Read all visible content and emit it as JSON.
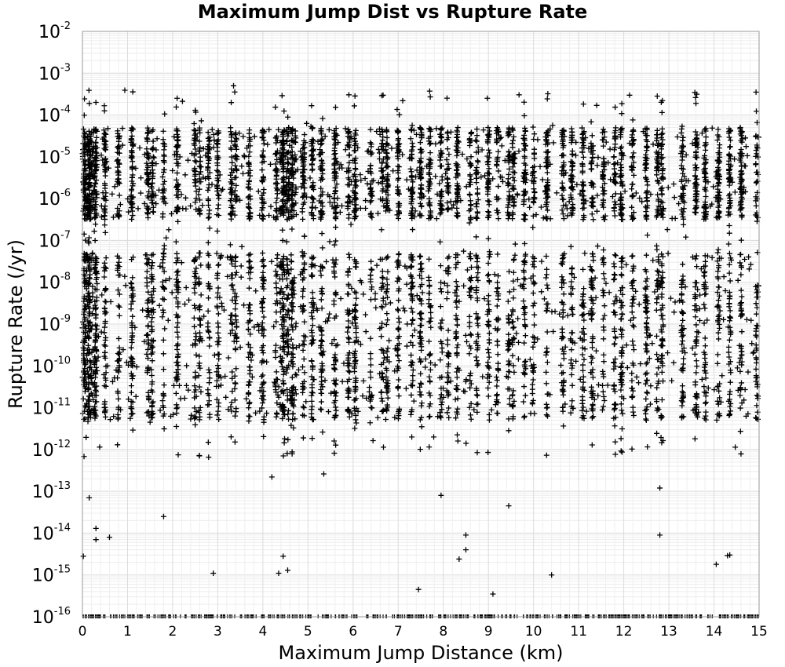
{
  "chart_data": {
    "type": "scatter",
    "title": "Maximum Jump Dist vs Rupture Rate",
    "xlabel": "Maximum Jump Distance (km)",
    "ylabel": "Rupture Rate (/yr)",
    "xlim": [
      0,
      15
    ],
    "ylim": [
      1e-16,
      0.01
    ],
    "yscale": "log",
    "grid": true,
    "marker": "+",
    "marker_color": "#000000",
    "x_ticks": [
      "0",
      "1",
      "2",
      "3",
      "4",
      "5",
      "6",
      "7",
      "8",
      "9",
      "10",
      "11",
      "12",
      "13",
      "14",
      "15"
    ],
    "y_ticks": [
      {
        "base": "10",
        "exp": "-2"
      },
      {
        "base": "10",
        "exp": "-3"
      },
      {
        "base": "10",
        "exp": "-4"
      },
      {
        "base": "10",
        "exp": "-5"
      },
      {
        "base": "10",
        "exp": "-6"
      },
      {
        "base": "10",
        "exp": "-7"
      },
      {
        "base": "10",
        "exp": "-8"
      },
      {
        "base": "10",
        "exp": "-9"
      },
      {
        "base": "10",
        "exp": "-10"
      },
      {
        "base": "10",
        "exp": "-11"
      },
      {
        "base": "10",
        "exp": "-12"
      },
      {
        "base": "10",
        "exp": "-13"
      },
      {
        "base": "10",
        "exp": "-14"
      },
      {
        "base": "10",
        "exp": "-15"
      },
      {
        "base": "10",
        "exp": "-16"
      }
    ],
    "x_clusters": [
      0.05,
      0.15,
      0.3,
      0.5,
      0.8,
      1.1,
      1.45,
      1.55,
      1.8,
      2.1,
      2.5,
      2.6,
      2.8,
      3.0,
      3.3,
      3.4,
      3.7,
      4.0,
      4.3,
      4.45,
      4.55,
      4.65,
      4.9,
      5.1,
      5.3,
      5.6,
      5.9,
      6.05,
      6.4,
      6.65,
      6.75,
      7.0,
      7.3,
      7.5,
      7.7,
      7.95,
      8.1,
      8.3,
      8.6,
      8.75,
      9.0,
      9.2,
      9.45,
      9.55,
      9.8,
      10.0,
      10.3,
      10.65,
      10.85,
      11.1,
      11.3,
      11.55,
      11.8,
      11.95,
      12.2,
      12.5,
      12.75,
      12.85,
      13.3,
      13.6,
      13.8,
      14.1,
      14.35,
      14.6,
      14.95
    ],
    "dense_bands": [
      {
        "range": [
          -6.5,
          -4.3
        ],
        "weight": 0.45
      },
      {
        "range": [
          -11.3,
          -7.3
        ],
        "weight": 0.45
      },
      {
        "range": [
          -12.2,
          -3.4
        ],
        "weight": 0.1
      }
    ],
    "sparse_points": [
      {
        "x": 0.15,
        "y": 7e-14
      },
      {
        "x": 0.3,
        "y": 1.3e-14
      },
      {
        "x": 0.3,
        "y": 7e-15
      },
      {
        "x": 0.6,
        "y": 8e-15
      },
      {
        "x": 1.8,
        "y": 2.5e-14
      },
      {
        "x": 2.9,
        "y": 1.1e-15
      },
      {
        "x": 4.2,
        "y": 2.2e-13
      },
      {
        "x": 4.35,
        "y": 1.1e-15
      },
      {
        "x": 4.45,
        "y": 2.8e-15
      },
      {
        "x": 4.55,
        "y": 1.3e-15
      },
      {
        "x": 5.35,
        "y": 2.6e-13
      },
      {
        "x": 7.45,
        "y": 4.5e-16
      },
      {
        "x": 7.95,
        "y": 8e-14
      },
      {
        "x": 8.35,
        "y": 2.4e-15
      },
      {
        "x": 8.5,
        "y": 9e-15
      },
      {
        "x": 8.5,
        "y": 4e-15
      },
      {
        "x": 9.1,
        "y": 3.5e-16
      },
      {
        "x": 9.45,
        "y": 4.5e-14
      },
      {
        "x": 10.4,
        "y": 1e-15
      },
      {
        "x": 12.8,
        "y": 1.2e-13
      },
      {
        "x": 12.8,
        "y": 9e-15
      },
      {
        "x": 14.05,
        "y": 1.8e-15
      },
      {
        "x": 14.3,
        "y": 2.9e-15
      },
      {
        "x": 14.35,
        "y": 3e-15
      },
      {
        "x": 0.02,
        "y": 2.8e-15
      },
      {
        "x": 1.5,
        "y": 4.5e-12
      },
      {
        "x": 3.35,
        "y": 0.0005
      },
      {
        "x": 7.1,
        "y": 0.00022
      },
      {
        "x": 11.4,
        "y": 0.00017
      },
      {
        "x": 13.6,
        "y": 0.00019
      }
    ],
    "floor_value": 1e-16
  }
}
